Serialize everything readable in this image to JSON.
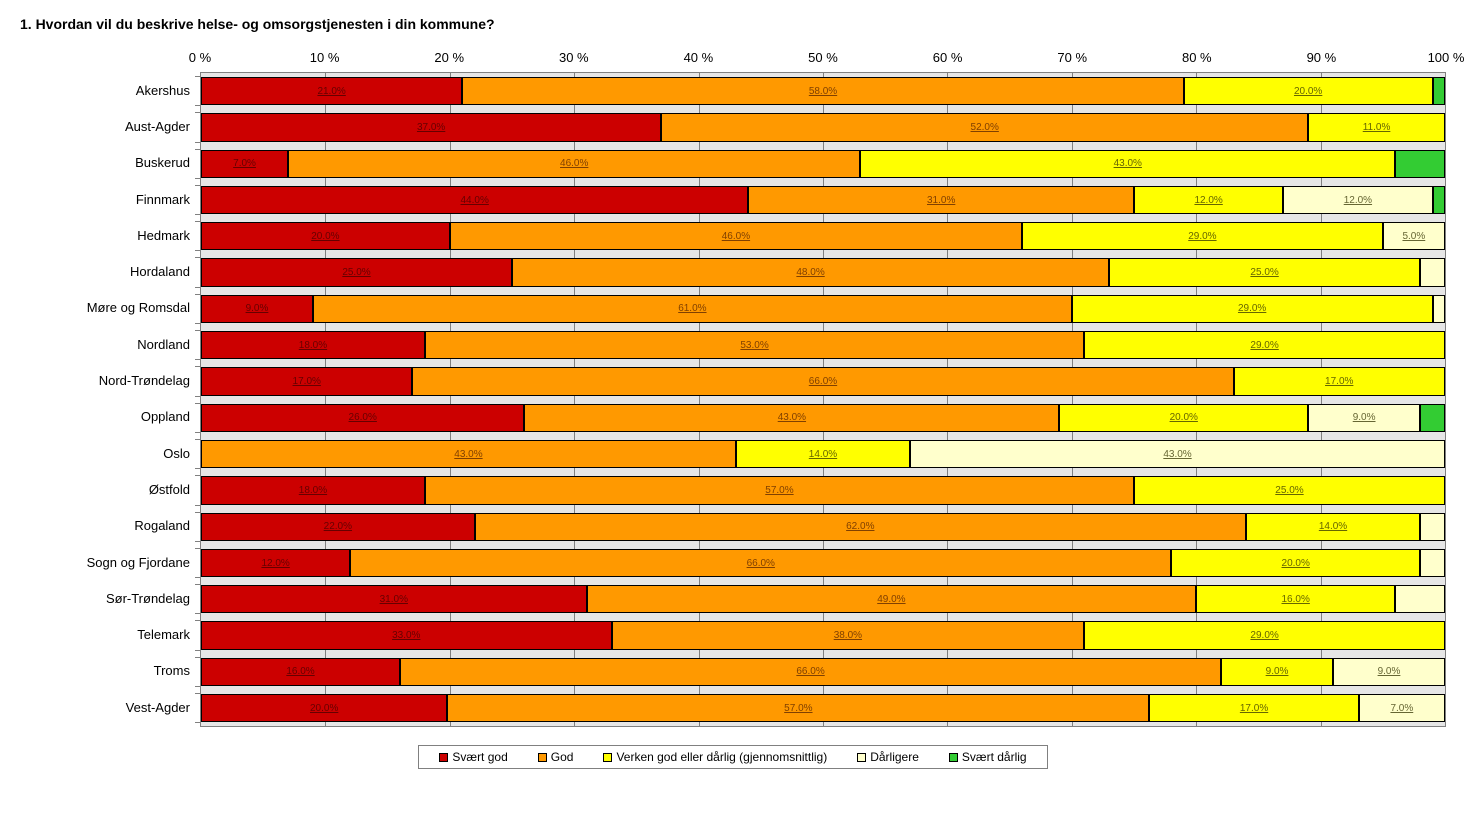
{
  "chart": {
    "type": "stacked-bar-horizontal-100",
    "title": "1. Hvordan vil du beskrive helse- og omsorgstjenesten i din kommune?",
    "title_fontsize": 14,
    "title_fontweight": "bold",
    "background_color": "#ffffff",
    "plot_background_color": "#e6e6e6",
    "grid_color": "#808080",
    "border_color": "#808080",
    "label_fontsize": 13,
    "value_fontsize": 10,
    "value_underline": true,
    "bar_border_color": "#000000",
    "x_axis": {
      "min": 0,
      "max": 100,
      "tick_step": 10,
      "tick_labels": [
        "0 %",
        "10 %",
        "20 %",
        "30 %",
        "40 %",
        "50 %",
        "60 %",
        "70 %",
        "80 %",
        "90 %",
        "100 %"
      ]
    },
    "series": [
      {
        "key": "svaert_god",
        "label": "Svært god",
        "color": "#cc0000",
        "label_color": "#660000"
      },
      {
        "key": "god",
        "label": "God",
        "color": "#ff9900",
        "label_color": "#804000"
      },
      {
        "key": "verken",
        "label": "Verken god eller dårlig (gjennomsnittlig)",
        "color": "#ffff00",
        "label_color": "#666600"
      },
      {
        "key": "daarligere",
        "label": "Dårligere",
        "color": "#ffffcc",
        "label_color": "#666633"
      },
      {
        "key": "svaert_daarlig",
        "label": "Svært dårlig",
        "color": "#33cc33",
        "label_color": "#006600"
      }
    ],
    "categories": [
      {
        "name": "Akershus",
        "values": {
          "svaert_god": 21.0,
          "god": 58.0,
          "verken": 20.0,
          "daarligere": 0.0,
          "svaert_daarlig": 1.0
        }
      },
      {
        "name": "Aust-Agder",
        "values": {
          "svaert_god": 37.0,
          "god": 52.0,
          "verken": 11.0,
          "daarligere": 0.0,
          "svaert_daarlig": 0.0
        }
      },
      {
        "name": "Buskerud",
        "values": {
          "svaert_god": 7.0,
          "god": 46.0,
          "verken": 43.0,
          "daarligere": 0.0,
          "svaert_daarlig": 4.0
        }
      },
      {
        "name": "Finnmark",
        "values": {
          "svaert_god": 44.0,
          "god": 31.0,
          "verken": 12.0,
          "daarligere": 12.0,
          "svaert_daarlig": 1.0
        }
      },
      {
        "name": "Hedmark",
        "values": {
          "svaert_god": 20.0,
          "god": 46.0,
          "verken": 29.0,
          "daarligere": 5.0,
          "svaert_daarlig": 0.0
        }
      },
      {
        "name": "Hordaland",
        "values": {
          "svaert_god": 25.0,
          "god": 48.0,
          "verken": 25.0,
          "daarligere": 2.0,
          "svaert_daarlig": 0.0
        }
      },
      {
        "name": "Møre og Romsdal",
        "values": {
          "svaert_god": 9.0,
          "god": 61.0,
          "verken": 29.0,
          "daarligere": 1.0,
          "svaert_daarlig": 0.0
        }
      },
      {
        "name": "Nordland",
        "values": {
          "svaert_god": 18.0,
          "god": 53.0,
          "verken": 29.0,
          "daarligere": 0.0,
          "svaert_daarlig": 0.0
        }
      },
      {
        "name": "Nord-Trøndelag",
        "values": {
          "svaert_god": 17.0,
          "god": 66.0,
          "verken": 17.0,
          "daarligere": 0.0,
          "svaert_daarlig": 0.0
        }
      },
      {
        "name": "Oppland",
        "values": {
          "svaert_god": 26.0,
          "god": 43.0,
          "verken": 20.0,
          "daarligere": 9.0,
          "svaert_daarlig": 2.0
        }
      },
      {
        "name": "Oslo",
        "values": {
          "svaert_god": 0.0,
          "god": 43.0,
          "verken": 14.0,
          "daarligere": 43.0,
          "svaert_daarlig": 0.0
        }
      },
      {
        "name": "Østfold",
        "values": {
          "svaert_god": 18.0,
          "god": 57.0,
          "verken": 25.0,
          "daarligere": 0.0,
          "svaert_daarlig": 0.0
        }
      },
      {
        "name": "Rogaland",
        "values": {
          "svaert_god": 22.0,
          "god": 62.0,
          "verken": 14.0,
          "daarligere": 2.0,
          "svaert_daarlig": 0.0
        }
      },
      {
        "name": "Sogn og Fjordane",
        "values": {
          "svaert_god": 12.0,
          "god": 66.0,
          "verken": 20.0,
          "daarligere": 2.0,
          "svaert_daarlig": 0.0
        }
      },
      {
        "name": "Sør-Trøndelag",
        "values": {
          "svaert_god": 31.0,
          "god": 49.0,
          "verken": 16.0,
          "daarligere": 4.0,
          "svaert_daarlig": 0.0
        }
      },
      {
        "name": "Telemark",
        "values": {
          "svaert_god": 33.0,
          "god": 38.0,
          "verken": 29.0,
          "daarligere": 0.0,
          "svaert_daarlig": 0.0
        }
      },
      {
        "name": "Troms",
        "values": {
          "svaert_god": 16.0,
          "god": 66.0,
          "verken": 9.0,
          "daarligere": 9.0,
          "svaert_daarlig": 0.0
        }
      },
      {
        "name": "Vest-Agder",
        "values": {
          "svaert_god": 20.0,
          "god": 57.0,
          "verken": 17.0,
          "daarligere": 7.0,
          "svaert_daarlig": 0.0
        }
      }
    ],
    "segment_label_threshold": 5.0
  }
}
